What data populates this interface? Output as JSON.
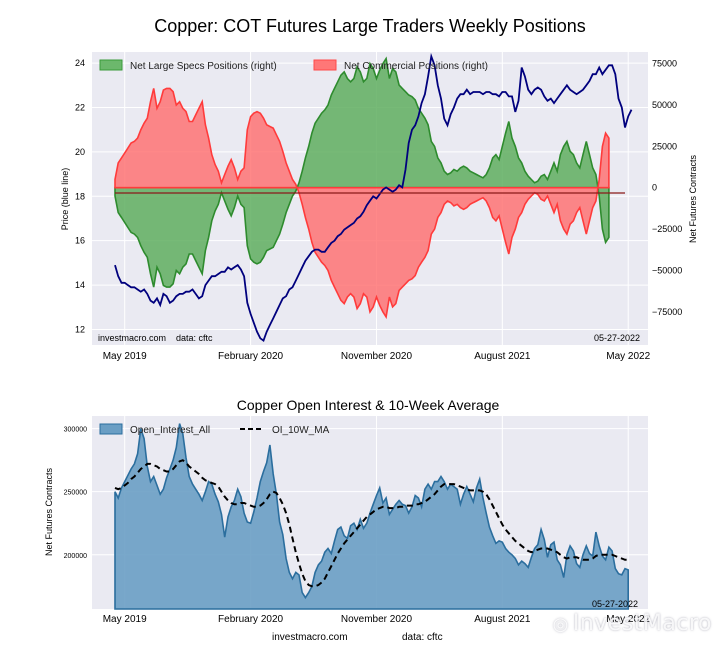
{
  "chart_data": [
    {
      "type": "area",
      "title": "Copper: COT Futures Large Traders Weekly Positions",
      "ylabel_left": "Price (blue line)",
      "ylabel_right": "Net Futures Contracts",
      "left_ylim": [
        11.3,
        24.5
      ],
      "left_yticks": [
        12,
        14,
        16,
        18,
        20,
        22,
        24
      ],
      "right_ylim": [
        -95000,
        82000
      ],
      "right_yticks": [
        -75000,
        -50000,
        -25000,
        0,
        25000,
        50000,
        75000
      ],
      "xlim": [
        0,
        158
      ],
      "xticks": [
        {
          "pos": 3,
          "label": "May 2019"
        },
        {
          "pos": 42,
          "label": "February 2020"
        },
        {
          "pos": 81,
          "label": "November 2020"
        },
        {
          "pos": 120,
          "label": "August 2021"
        },
        {
          "pos": 159,
          "label": "May 2022"
        }
      ],
      "legend": [
        "Net Large Specs Positions (right)",
        "Net Commercial Positions (right)"
      ],
      "legend_position": "top-left",
      "footer_left": "investmacro.com    data: cftc",
      "footer_right": "05-27-2022",
      "colors": {
        "specs": "#3a9b3a",
        "commercial": "#ff4a4a",
        "price": "#00007e",
        "bg": "#eaeaf2"
      },
      "series": [
        {
          "name": "Net Large Specs Positions (right)",
          "x_start": 0,
          "x_step": 1,
          "values": [
            -5000,
            -15000,
            -18000,
            -21000,
            -24000,
            -27000,
            -28000,
            -30000,
            -35000,
            -39000,
            -42000,
            -52000,
            -60000,
            -48000,
            -52000,
            -59000,
            -60000,
            -60000,
            -58000,
            -50000,
            -52000,
            -48000,
            -46000,
            -40000,
            -40000,
            -44000,
            -48000,
            -52000,
            -38000,
            -30000,
            -20000,
            -14000,
            -10000,
            -3000,
            -8000,
            -13000,
            -17000,
            -12000,
            -5000,
            -10000,
            -12000,
            -35000,
            -43000,
            -45000,
            -46000,
            -45000,
            -42000,
            -38000,
            -37000,
            -36000,
            -32000,
            -28000,
            -22000,
            -15000,
            -10000,
            -5000,
            -2000,
            3000,
            10000,
            18000,
            25000,
            33000,
            39000,
            42000,
            45000,
            47000,
            50000,
            56000,
            60000,
            64000,
            68000,
            70000,
            66000,
            64000,
            66000,
            73000,
            70000,
            64000,
            66000,
            75000,
            72000,
            66000,
            71000,
            75000,
            78000,
            66000,
            72000,
            70000,
            62000,
            60000,
            58000,
            56000,
            55000,
            53000,
            48000,
            45000,
            42000,
            38000,
            28000,
            25000,
            18000,
            15000,
            10000,
            8000,
            9000,
            11000,
            10000,
            12000,
            13000,
            12000,
            10000,
            9000,
            8000,
            7000,
            6000,
            8000,
            12000,
            18000,
            20000,
            17000,
            25000,
            33000,
            40000,
            30000,
            25000,
            18000,
            15000,
            10000,
            7000,
            5000,
            3000,
            4000,
            7000,
            8000,
            5000,
            10000,
            15000,
            10000,
            20000,
            25000,
            28000,
            22000,
            20000,
            15000,
            12000,
            20000,
            28000,
            20000,
            12000,
            8000,
            -5000,
            -25000,
            -33000,
            -30000
          ],
          "baseline": 0
        },
        {
          "name": "Net Commercial Positions (right)",
          "x_start": 0,
          "x_step": 1,
          "values": [
            5000,
            15000,
            18000,
            21000,
            24000,
            27000,
            28000,
            30000,
            35000,
            39000,
            42000,
            52000,
            60000,
            48000,
            52000,
            59000,
            60000,
            60000,
            58000,
            50000,
            52000,
            48000,
            46000,
            40000,
            40000,
            44000,
            48000,
            52000,
            38000,
            30000,
            20000,
            14000,
            10000,
            3000,
            8000,
            13000,
            17000,
            12000,
            5000,
            10000,
            12000,
            35000,
            43000,
            45000,
            46000,
            45000,
            42000,
            38000,
            37000,
            36000,
            32000,
            28000,
            22000,
            15000,
            10000,
            5000,
            2000,
            -3000,
            -10000,
            -18000,
            -25000,
            -33000,
            -39000,
            -42000,
            -45000,
            -47000,
            -50000,
            -56000,
            -60000,
            -64000,
            -68000,
            -70000,
            -66000,
            -64000,
            -66000,
            -73000,
            -70000,
            -64000,
            -66000,
            -75000,
            -72000,
            -66000,
            -71000,
            -75000,
            -78000,
            -66000,
            -72000,
            -70000,
            -62000,
            -60000,
            -58000,
            -56000,
            -55000,
            -53000,
            -48000,
            -45000,
            -42000,
            -38000,
            -28000,
            -25000,
            -18000,
            -15000,
            -10000,
            -8000,
            -9000,
            -11000,
            -10000,
            -12000,
            -13000,
            -12000,
            -10000,
            -9000,
            -8000,
            -7000,
            -6000,
            -8000,
            -12000,
            -18000,
            -20000,
            -17000,
            -25000,
            -33000,
            -40000,
            -30000,
            -25000,
            -18000,
            -15000,
            -10000,
            -7000,
            -5000,
            -3000,
            -4000,
            -7000,
            -8000,
            -5000,
            -10000,
            -15000,
            -10000,
            -20000,
            -25000,
            -28000,
            -22000,
            -20000,
            -15000,
            -12000,
            -20000,
            -28000,
            -20000,
            -12000,
            -8000,
            5000,
            25000,
            33000,
            30000
          ],
          "baseline": 0
        },
        {
          "name": "Price",
          "axis": "left",
          "x_start": 0,
          "x_step": 1,
          "values": [
            14.9,
            14.4,
            14.1,
            14.1,
            14.0,
            13.9,
            13.9,
            13.8,
            13.7,
            13.8,
            13.6,
            13.3,
            13.2,
            13.4,
            13.1,
            13.6,
            13.5,
            13.2,
            13.3,
            13.5,
            13.6,
            13.6,
            13.7,
            13.7,
            13.8,
            13.6,
            13.4,
            13.5,
            14.0,
            14.2,
            14.4,
            14.4,
            14.5,
            14.6,
            14.6,
            14.8,
            14.7,
            14.8,
            14.9,
            14.7,
            14.4,
            13.2,
            12.7,
            12.3,
            11.9,
            11.6,
            11.5,
            11.9,
            12.2,
            12.5,
            12.8,
            13.1,
            13.4,
            13.5,
            13.8,
            13.9,
            14.2,
            14.5,
            14.8,
            15.1,
            15.3,
            15.5,
            15.6,
            15.6,
            15.5,
            15.5,
            15.7,
            15.9,
            16.0,
            16.2,
            16.3,
            16.5,
            16.6,
            16.7,
            16.8,
            17.0,
            17.1,
            17.3,
            17.6,
            17.8,
            18.0,
            17.9,
            18.1,
            18.3,
            18.4,
            18.3,
            18.2,
            18.3,
            18.5,
            18.4,
            19.2,
            20.4,
            21.0,
            21.2,
            21.6,
            22.2,
            22.6,
            23.4,
            24.3,
            23.9,
            23.0,
            22.4,
            21.5,
            21.2,
            21.7,
            22.0,
            22.4,
            22.6,
            22.6,
            22.8,
            22.6,
            22.7,
            22.7,
            22.7,
            22.6,
            22.7,
            22.7,
            22.6,
            22.6,
            22.5,
            22.7,
            22.7,
            22.5,
            22.5,
            21.8,
            22.3,
            23.8,
            23.4,
            22.8,
            22.6,
            22.8,
            22.9,
            22.8,
            22.5,
            22.3,
            22.4,
            22.2,
            22.4,
            22.6,
            22.8,
            23.0,
            22.8,
            22.7,
            22.6,
            22.7,
            22.8,
            23.0,
            23.2,
            23.5,
            23.5,
            23.8,
            23.5,
            23.7,
            23.9,
            23.9,
            23.5,
            22.4,
            22.0,
            21.1,
            21.6,
            21.9
          ]
        }
      ]
    },
    {
      "type": "area",
      "title": "Copper Open Interest & 10-Week Average",
      "ylabel": "Net Futures Contracts",
      "ylim": [
        157000,
        310000
      ],
      "yticks": [
        200000,
        250000,
        300000
      ],
      "xlim": [
        0,
        158
      ],
      "xticks": [
        {
          "pos": 3,
          "label": "May 2019"
        },
        {
          "pos": 42,
          "label": "February 2020"
        },
        {
          "pos": 81,
          "label": "November 2020"
        },
        {
          "pos": 120,
          "label": "August 2021"
        },
        {
          "pos": 159,
          "label": "May 2022"
        }
      ],
      "legend": [
        "Open_Interest_All",
        "OI_10W_MA"
      ],
      "legend_position": "top-left",
      "footer_right": "05-27-2022",
      "footer_site": "investmacro.com",
      "footer_source": "data: cftc",
      "colors": {
        "oi_fill": "#6a9ec4",
        "oi_line": "#2b6e9e",
        "ma": "#000000",
        "bg": "#eaeaf2"
      },
      "series": [
        {
          "name": "Open_Interest_All",
          "x_start": 0,
          "x_step": 1,
          "values": [
            250000,
            245000,
            253000,
            258000,
            263000,
            268000,
            272000,
            280000,
            300000,
            292000,
            270000,
            258000,
            262000,
            255000,
            248000,
            252000,
            261000,
            268000,
            275000,
            285000,
            304000,
            296000,
            277000,
            262000,
            256000,
            252000,
            248000,
            243000,
            250000,
            258000,
            256000,
            248000,
            242000,
            232000,
            214000,
            230000,
            238000,
            243000,
            252000,
            246000,
            233000,
            226000,
            225000,
            234000,
            245000,
            258000,
            266000,
            273000,
            287000,
            264000,
            248000,
            226000,
            216000,
            197000,
            186000,
            181000,
            186000,
            184000,
            170000,
            166000,
            170000,
            175000,
            186000,
            192000,
            195000,
            202000,
            205000,
            201000,
            211000,
            220000,
            222000,
            215000,
            213000,
            223000,
            225000,
            220000,
            228000,
            221000,
            225000,
            233000,
            240000,
            247000,
            253000,
            241000,
            245000,
            232000,
            236000,
            240000,
            243000,
            240000,
            239000,
            233000,
            238000,
            247000,
            245000,
            238000,
            252000,
            256000,
            252000,
            258000,
            258000,
            262000,
            258000,
            252000,
            256000,
            254000,
            252000,
            240000,
            248000,
            254000,
            248000,
            242000,
            253000,
            260000,
            245000,
            233000,
            222000,
            215000,
            209000,
            211000,
            210000,
            205000,
            202000,
            200000,
            197000,
            192000,
            195000,
            193000,
            190000,
            198000,
            205000,
            208000,
            220000,
            212000,
            198000,
            208000,
            210000,
            196000,
            192000,
            182000,
            200000,
            207000,
            203000,
            193000,
            190000,
            200000,
            207000,
            201000,
            199000,
            218000,
            207000,
            199000,
            196000,
            206000,
            203000,
            189000,
            185000,
            184000,
            189000,
            188000
          ],
          "baseline": 157000
        },
        {
          "name": "OI_10W_MA",
          "x_start": 0,
          "x_step": 1,
          "values": [
            253000,
            252000,
            253000,
            255000,
            257000,
            260000,
            262000,
            265000,
            268000,
            270000,
            272000,
            272000,
            271000,
            270000,
            268000,
            267000,
            266000,
            266000,
            268000,
            271000,
            274000,
            275000,
            273000,
            270000,
            268000,
            266000,
            264000,
            261000,
            259000,
            258000,
            257000,
            256000,
            254000,
            250000,
            246000,
            243000,
            241000,
            240000,
            240000,
            241000,
            241000,
            240000,
            239000,
            238000,
            238000,
            239000,
            241000,
            244000,
            248000,
            250000,
            249000,
            245000,
            240000,
            233000,
            224000,
            213000,
            202000,
            193000,
            185000,
            179000,
            176000,
            175000,
            175000,
            176000,
            178000,
            181000,
            186000,
            191000,
            196000,
            201000,
            205000,
            209000,
            212000,
            215000,
            218000,
            221000,
            224000,
            227000,
            230000,
            232000,
            234000,
            236000,
            237000,
            238000,
            238000,
            237000,
            237000,
            237000,
            238000,
            238000,
            239000,
            239000,
            239000,
            240000,
            240000,
            241000,
            242000,
            244000,
            246000,
            248000,
            251000,
            254000,
            256000,
            256000,
            256000,
            256000,
            255000,
            254000,
            253000,
            252000,
            251000,
            251000,
            251000,
            251000,
            250000,
            248000,
            244000,
            239000,
            234000,
            229000,
            224000,
            220000,
            217000,
            214000,
            211000,
            209000,
            207000,
            205000,
            203000,
            202000,
            203000,
            204000,
            205000,
            205000,
            205000,
            204000,
            203000,
            202000,
            200000,
            198000,
            197000,
            198000,
            198000,
            198000,
            197000,
            196000,
            196000,
            196000,
            197000,
            199000,
            200000,
            200000,
            200000,
            200000,
            200000,
            199000,
            198000,
            197000,
            196000,
            196000
          ]
        }
      ]
    }
  ],
  "watermark": "InvestMacro"
}
